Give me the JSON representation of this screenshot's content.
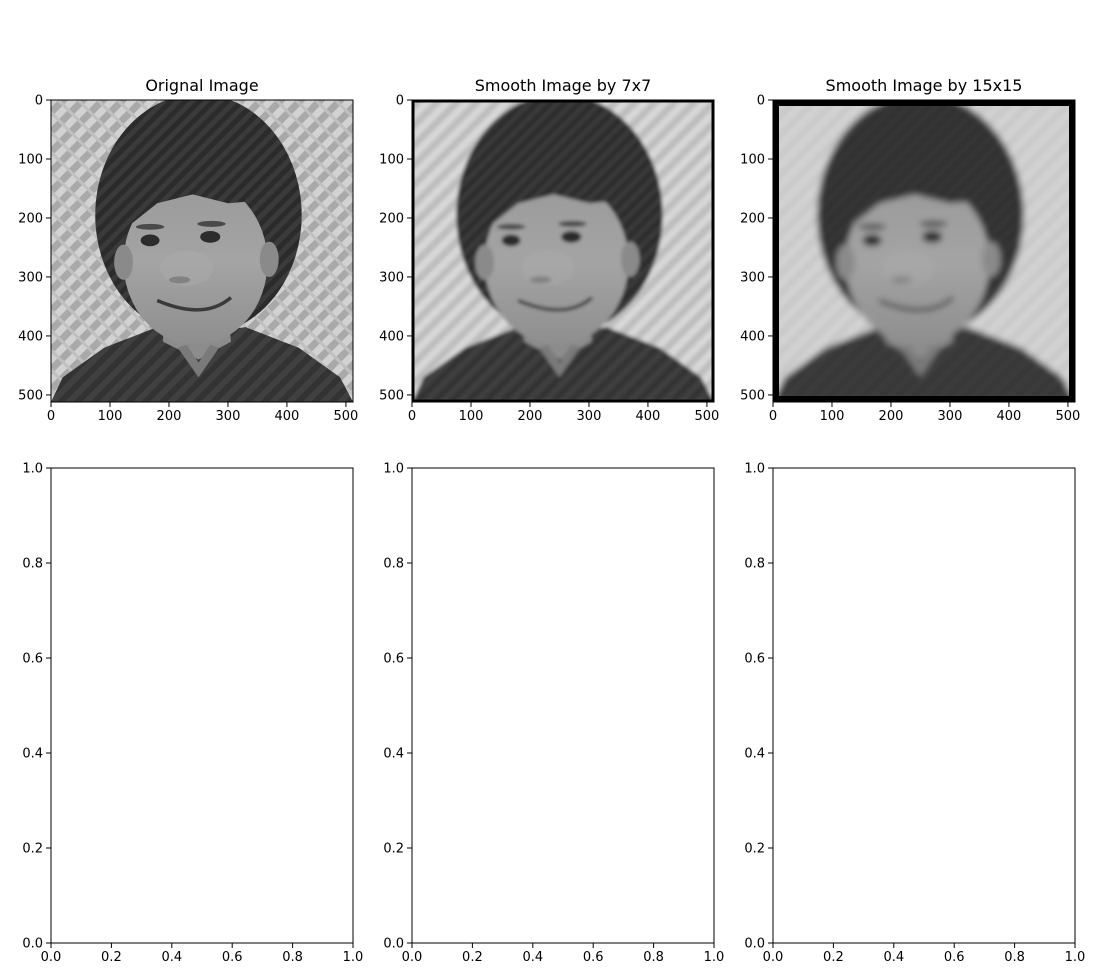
{
  "chart_data": [
    {
      "type": "image",
      "title": "Orignal Image",
      "image_extent": [
        512,
        512
      ],
      "x_ticks": [
        "0",
        "100",
        "200",
        "300",
        "400",
        "500"
      ],
      "y_ticks": [
        "0",
        "100",
        "200",
        "300",
        "400",
        "500"
      ],
      "frame": "thin",
      "image_description": "grayscale photo of a smiling boy with a diagonal moire texture in the background"
    },
    {
      "type": "image",
      "title": "Smooth Image by 7x7",
      "image_extent": [
        512,
        512
      ],
      "x_ticks": [
        "0",
        "100",
        "200",
        "300",
        "400",
        "500"
      ],
      "y_ticks": [
        "0",
        "100",
        "200",
        "300",
        "400",
        "500"
      ],
      "frame": "black border from zero padding",
      "image_description": "the same photo blurred with a 7x7 smoothing filter"
    },
    {
      "type": "image",
      "title": "Smooth Image by 15x15",
      "image_extent": [
        512,
        512
      ],
      "x_ticks": [
        "0",
        "100",
        "200",
        "300",
        "400",
        "500"
      ],
      "y_ticks": [
        "0",
        "100",
        "200",
        "300",
        "400",
        "500"
      ],
      "frame": "thick black border from zero padding",
      "image_description": "the same photo blurred with a 15x15 smoothing filter"
    },
    {
      "type": "empty",
      "xlim": [
        0,
        1
      ],
      "ylim": [
        0,
        1
      ],
      "x_ticks": [
        "0.0",
        "0.2",
        "0.4",
        "0.6",
        "0.8",
        "1.0"
      ],
      "y_ticks": [
        "0.0",
        "0.2",
        "0.4",
        "0.6",
        "0.8",
        "1.0"
      ]
    },
    {
      "type": "empty",
      "xlim": [
        0,
        1
      ],
      "ylim": [
        0,
        1
      ],
      "x_ticks": [
        "0.0",
        "0.2",
        "0.4",
        "0.6",
        "0.8",
        "1.0"
      ],
      "y_ticks": [
        "0.0",
        "0.2",
        "0.4",
        "0.6",
        "0.8",
        "1.0"
      ]
    },
    {
      "type": "empty",
      "xlim": [
        0,
        1
      ],
      "ylim": [
        0,
        1
      ],
      "x_ticks": [
        "0.0",
        "0.2",
        "0.4",
        "0.6",
        "0.8",
        "1.0"
      ],
      "y_ticks": [
        "0.0",
        "0.2",
        "0.4",
        "0.6",
        "0.8",
        "1.0"
      ]
    }
  ],
  "colors": {
    "background": "#ffffff",
    "axis": "#000000",
    "image_light": "#d4d4d4",
    "image_dark": "#2a2a2a"
  }
}
